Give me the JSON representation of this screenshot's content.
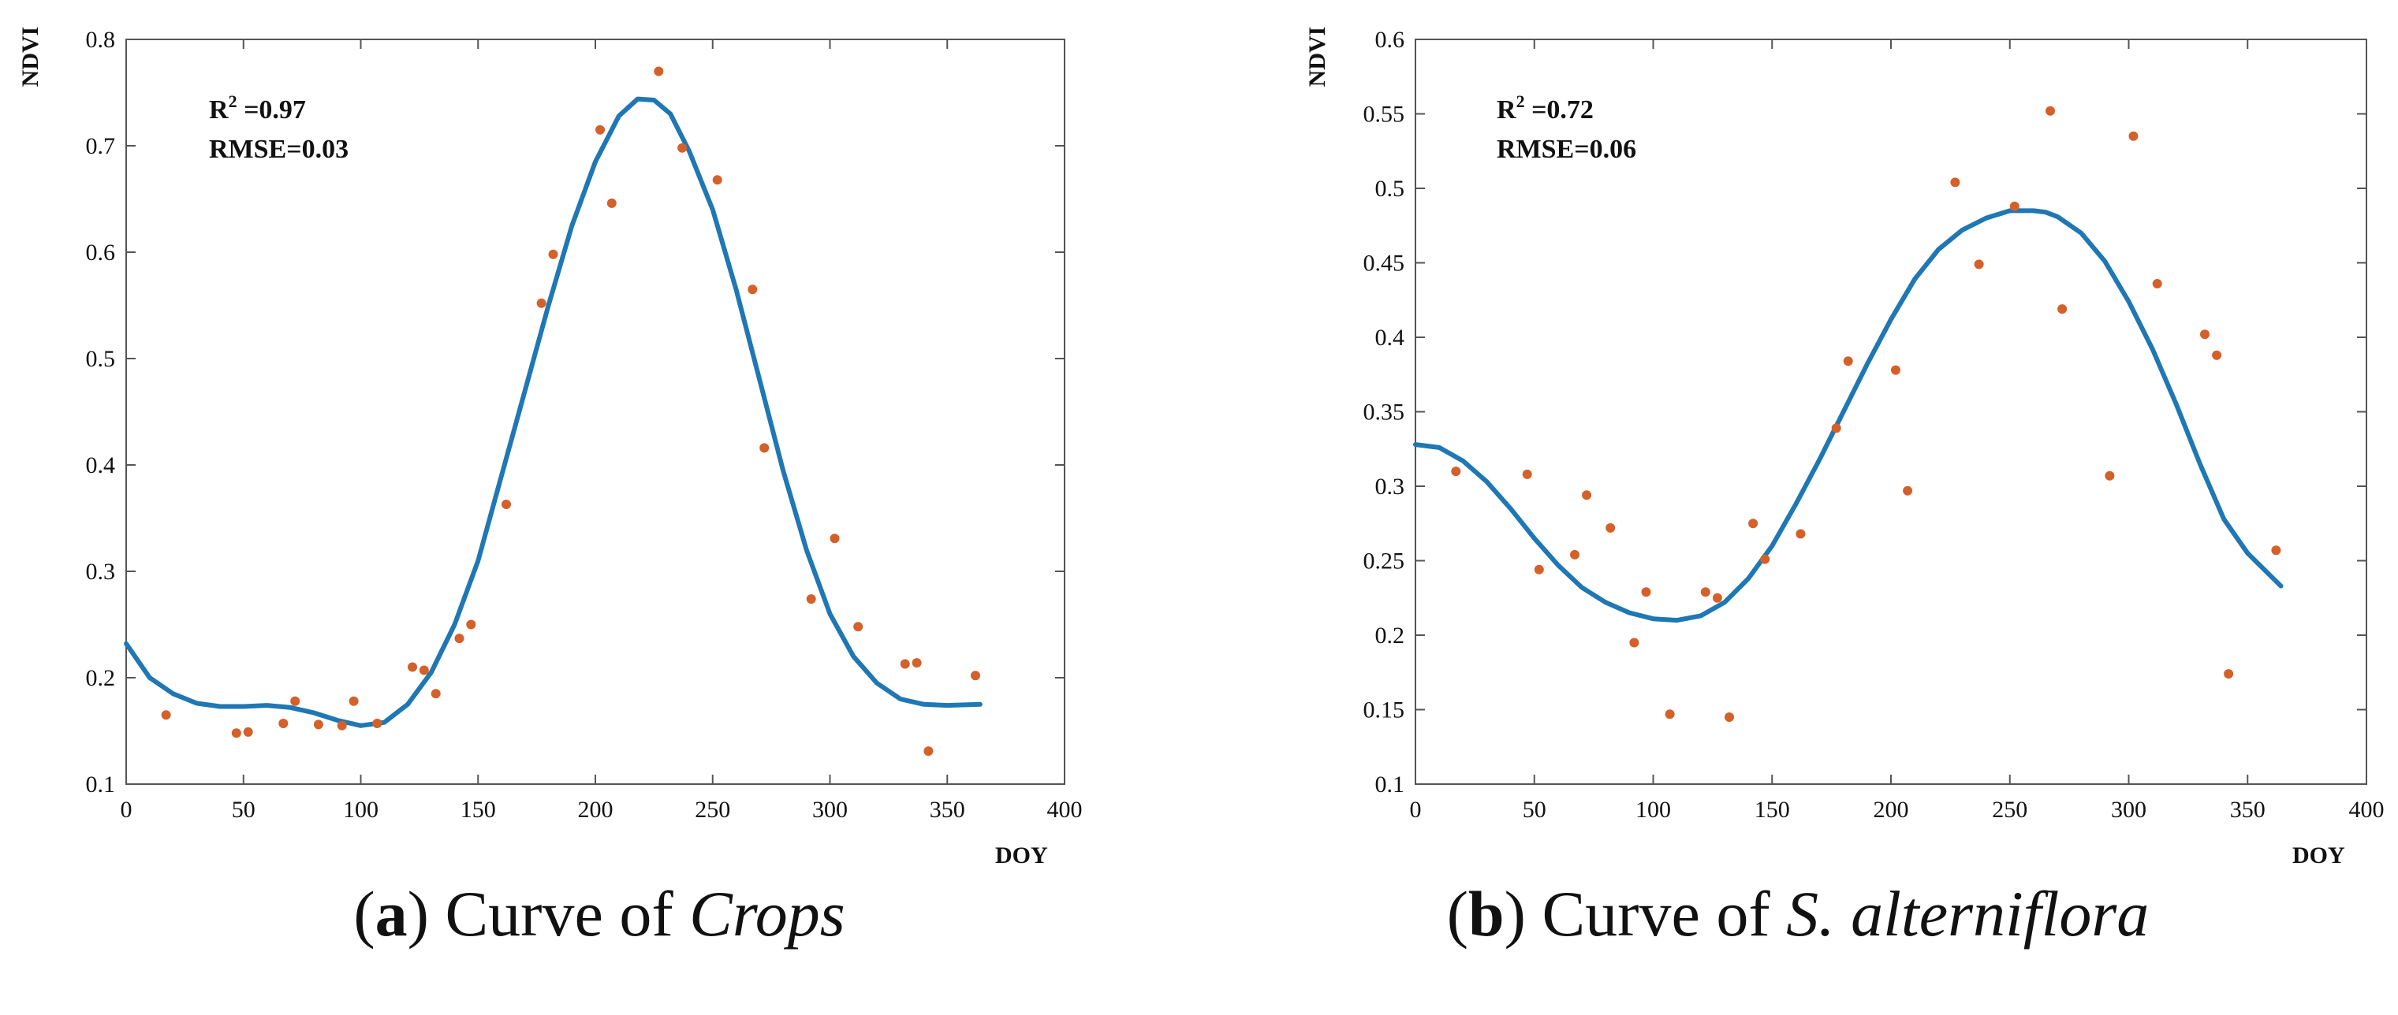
{
  "colors": {
    "curve": "#1f77b4",
    "points": "#d4602a",
    "axis": "#555555",
    "text": "#111111"
  },
  "chart_data": [
    {
      "type": "scatter",
      "xlabel": "DOY",
      "ylabel": "NDVI",
      "xlim": [
        0,
        400
      ],
      "ylim": [
        0.1,
        0.8
      ],
      "xticks": [
        0,
        50,
        100,
        150,
        200,
        250,
        300,
        350,
        400
      ],
      "yticks": [
        0.1,
        0.2,
        0.3,
        0.4,
        0.5,
        0.6,
        0.7,
        0.8
      ],
      "grid": false,
      "annotations": [
        {
          "text_main": "R",
          "sup": "2",
          "text_rest": " =0.97"
        },
        {
          "text_main": "RMSE=0.03",
          "sup": "",
          "text_rest": ""
        }
      ],
      "series": [
        {
          "kind": "scatter",
          "points": [
            [
              17,
              0.165
            ],
            [
              47,
              0.148
            ],
            [
              52,
              0.149
            ],
            [
              67,
              0.157
            ],
            [
              72,
              0.178
            ],
            [
              82,
              0.156
            ],
            [
              92,
              0.155
            ],
            [
              97,
              0.178
            ],
            [
              107,
              0.157
            ],
            [
              122,
              0.21
            ],
            [
              127,
              0.207
            ],
            [
              132,
              0.185
            ],
            [
              142,
              0.237
            ],
            [
              147,
              0.25
            ],
            [
              162,
              0.363
            ],
            [
              177,
              0.552
            ],
            [
              182,
              0.598
            ],
            [
              202,
              0.715
            ],
            [
              207,
              0.646
            ],
            [
              227,
              0.77
            ],
            [
              237,
              0.698
            ],
            [
              252,
              0.668
            ],
            [
              267,
              0.565
            ],
            [
              272,
              0.416
            ],
            [
              292,
              0.274
            ],
            [
              302,
              0.331
            ],
            [
              312,
              0.248
            ],
            [
              332,
              0.213
            ],
            [
              337,
              0.214
            ],
            [
              342,
              0.131
            ],
            [
              362,
              0.202
            ]
          ]
        },
        {
          "kind": "line",
          "points": [
            [
              0,
              0.232
            ],
            [
              10,
              0.2
            ],
            [
              20,
              0.185
            ],
            [
              30,
              0.176
            ],
            [
              40,
              0.173
            ],
            [
              50,
              0.173
            ],
            [
              60,
              0.174
            ],
            [
              70,
              0.172
            ],
            [
              80,
              0.167
            ],
            [
              90,
              0.16
            ],
            [
              100,
              0.155
            ],
            [
              110,
              0.158
            ],
            [
              120,
              0.175
            ],
            [
              130,
              0.205
            ],
            [
              140,
              0.25
            ],
            [
              150,
              0.31
            ],
            [
              160,
              0.39
            ],
            [
              170,
              0.47
            ],
            [
              180,
              0.55
            ],
            [
              190,
              0.625
            ],
            [
              200,
              0.685
            ],
            [
              210,
              0.728
            ],
            [
              218,
              0.744
            ],
            [
              225,
              0.743
            ],
            [
              232,
              0.73
            ],
            [
              240,
              0.695
            ],
            [
              250,
              0.64
            ],
            [
              260,
              0.565
            ],
            [
              270,
              0.48
            ],
            [
              280,
              0.395
            ],
            [
              290,
              0.32
            ],
            [
              300,
              0.26
            ],
            [
              310,
              0.22
            ],
            [
              320,
              0.195
            ],
            [
              330,
              0.18
            ],
            [
              340,
              0.175
            ],
            [
              350,
              0.174
            ],
            [
              364,
              0.175
            ]
          ]
        }
      ]
    },
    {
      "type": "scatter",
      "xlabel": "DOY",
      "ylabel": "NDVI",
      "xlim": [
        0,
        400
      ],
      "ylim": [
        0.1,
        0.6
      ],
      "xticks": [
        0,
        50,
        100,
        150,
        200,
        250,
        300,
        350,
        400
      ],
      "yticks": [
        0.1,
        0.15,
        0.2,
        0.25,
        0.3,
        0.35,
        0.4,
        0.45,
        0.5,
        0.55,
        0.6
      ],
      "grid": false,
      "annotations": [
        {
          "text_main": "R",
          "sup": "2",
          "text_rest": " =0.72"
        },
        {
          "text_main": "RMSE=0.06",
          "sup": "",
          "text_rest": ""
        }
      ],
      "series": [
        {
          "kind": "scatter",
          "points": [
            [
              17,
              0.31
            ],
            [
              47,
              0.308
            ],
            [
              52,
              0.244
            ],
            [
              67,
              0.254
            ],
            [
              72,
              0.294
            ],
            [
              82,
              0.272
            ],
            [
              92,
              0.195
            ],
            [
              97,
              0.229
            ],
            [
              107,
              0.147
            ],
            [
              122,
              0.229
            ],
            [
              127,
              0.225
            ],
            [
              132,
              0.145
            ],
            [
              142,
              0.275
            ],
            [
              147,
              0.251
            ],
            [
              162,
              0.268
            ],
            [
              177,
              0.339
            ],
            [
              182,
              0.384
            ],
            [
              202,
              0.378
            ],
            [
              207,
              0.297
            ],
            [
              227,
              0.504
            ],
            [
              237,
              0.449
            ],
            [
              252,
              0.488
            ],
            [
              267,
              0.552
            ],
            [
              272,
              0.419
            ],
            [
              292,
              0.307
            ],
            [
              302,
              0.535
            ],
            [
              312,
              0.436
            ],
            [
              332,
              0.402
            ],
            [
              337,
              0.388
            ],
            [
              342,
              0.174
            ],
            [
              362,
              0.257
            ]
          ]
        },
        {
          "kind": "line",
          "points": [
            [
              0,
              0.328
            ],
            [
              10,
              0.326
            ],
            [
              20,
              0.317
            ],
            [
              30,
              0.303
            ],
            [
              40,
              0.285
            ],
            [
              50,
              0.265
            ],
            [
              60,
              0.247
            ],
            [
              70,
              0.232
            ],
            [
              80,
              0.222
            ],
            [
              90,
              0.215
            ],
            [
              100,
              0.211
            ],
            [
              110,
              0.21
            ],
            [
              120,
              0.213
            ],
            [
              130,
              0.222
            ],
            [
              140,
              0.238
            ],
            [
              150,
              0.26
            ],
            [
              160,
              0.288
            ],
            [
              170,
              0.318
            ],
            [
              180,
              0.35
            ],
            [
              190,
              0.382
            ],
            [
              200,
              0.412
            ],
            [
              210,
              0.439
            ],
            [
              220,
              0.459
            ],
            [
              230,
              0.472
            ],
            [
              240,
              0.48
            ],
            [
              250,
              0.485
            ],
            [
              260,
              0.485
            ],
            [
              265,
              0.484
            ],
            [
              270,
              0.481
            ],
            [
              280,
              0.47
            ],
            [
              290,
              0.451
            ],
            [
              300,
              0.424
            ],
            [
              310,
              0.392
            ],
            [
              320,
              0.355
            ],
            [
              330,
              0.315
            ],
            [
              340,
              0.278
            ],
            [
              350,
              0.255
            ],
            [
              364,
              0.233
            ]
          ]
        }
      ]
    }
  ],
  "captions": [
    {
      "letter": "a",
      "text": " Curve of ",
      "species": "Crops"
    },
    {
      "letter": "b",
      "text": " Curve of ",
      "species": "S. alterniflora"
    }
  ]
}
